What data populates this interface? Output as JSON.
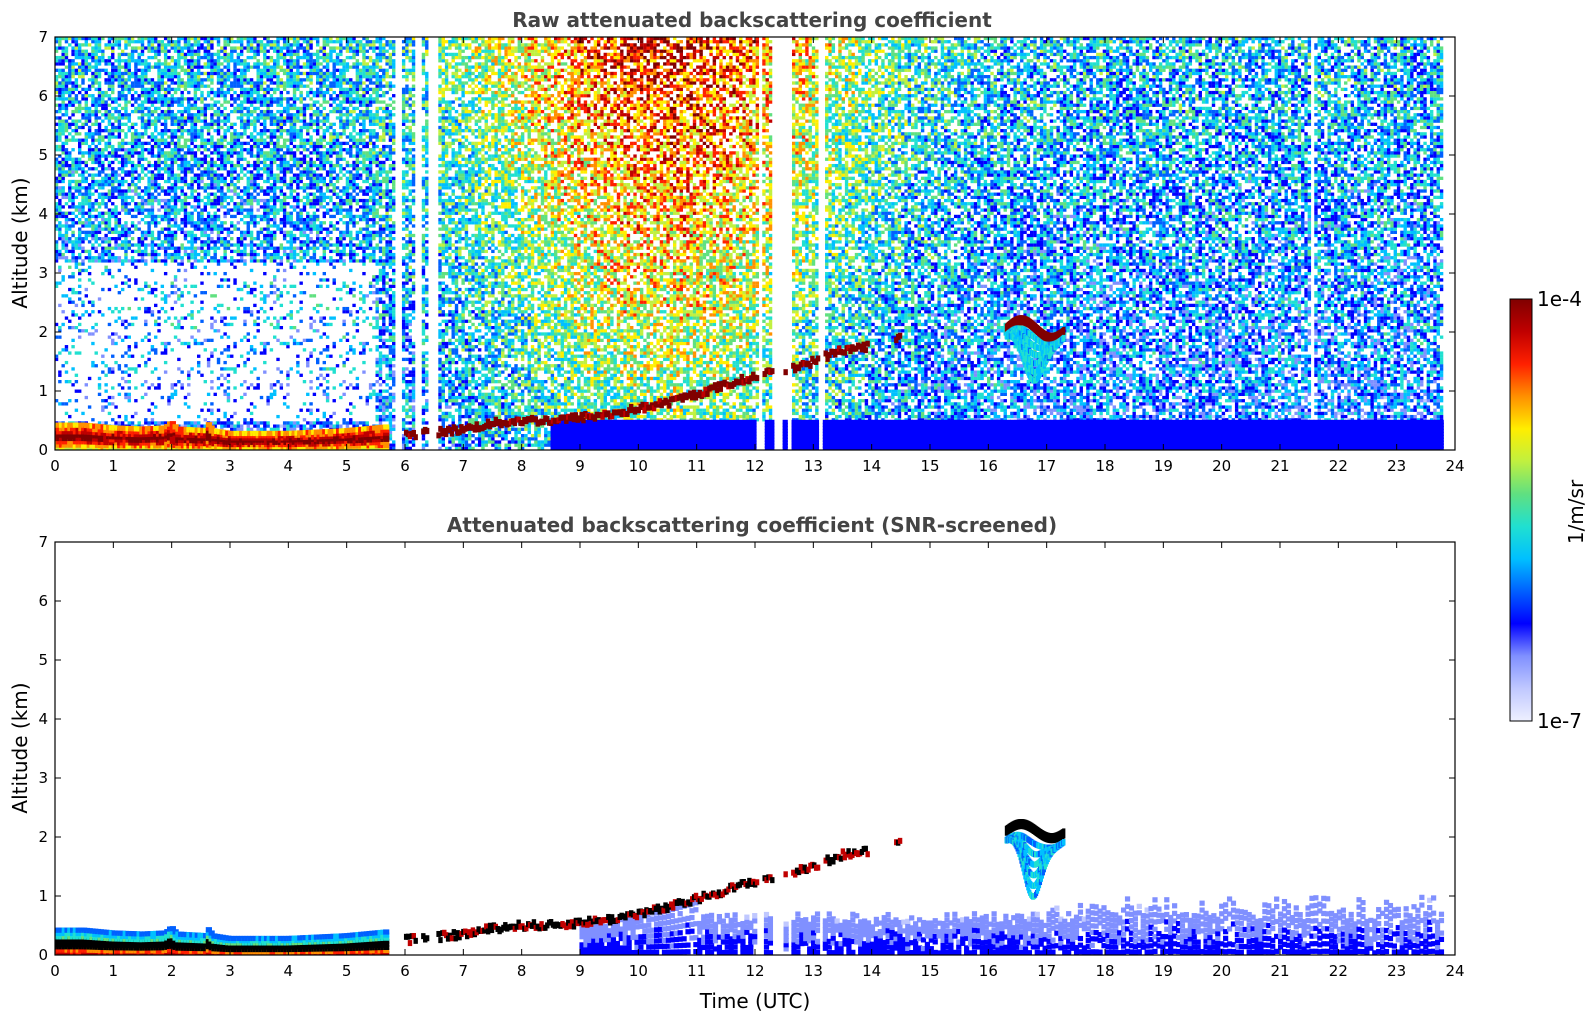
{
  "colors": {
    "colormap": [
      "#eef0ff",
      "#c0c8ff",
      "#8090ff",
      "#0000ff",
      "#0060ff",
      "#00c0ff",
      "#20e0d0",
      "#60e080",
      "#c0f040",
      "#ffee00",
      "#ff9000",
      "#ff2000",
      "#c00000",
      "#800000"
    ],
    "screened_core": "#000000"
  },
  "chart_data": [
    {
      "type": "heatmap",
      "title": "Raw attenuated backscattering coefficient",
      "xlabel": "",
      "ylabel": "Altitude (km)",
      "xlim": [
        0,
        24
      ],
      "ylim": [
        0,
        7
      ],
      "xticks": [
        "0",
        "1",
        "2",
        "3",
        "4",
        "5",
        "6",
        "7",
        "8",
        "9",
        "10",
        "11",
        "12",
        "13",
        "14",
        "15",
        "16",
        "17",
        "18",
        "19",
        "20",
        "21",
        "22",
        "23",
        "24"
      ],
      "yticks": [
        "0",
        "1",
        "2",
        "3",
        "4",
        "5",
        "6",
        "7"
      ],
      "data_end_time": 23.8,
      "gaps_time": [
        [
          5.85,
          5.95
        ],
        [
          6.2,
          6.3
        ],
        [
          6.4,
          6.55
        ],
        [
          12.05,
          12.15
        ],
        [
          12.3,
          12.5
        ],
        [
          12.55,
          12.65
        ],
        [
          13.1,
          13.2
        ],
        [
          20.55,
          20.58
        ],
        [
          21.55,
          21.58
        ]
      ],
      "aerosol_layer_top_km": {
        "time": [
          0,
          0.5,
          1,
          1.5,
          1.9,
          2.0,
          2.1,
          2.6,
          2.65,
          2.7,
          3,
          4,
          5,
          5.5,
          6,
          6.5,
          7,
          7.5,
          8,
          8.5,
          9,
          9.5,
          10,
          10.5,
          11,
          11.5,
          12,
          12.5,
          13,
          13.5,
          14
        ],
        "height": [
          0.45,
          0.45,
          0.4,
          0.38,
          0.4,
          0.5,
          0.38,
          0.35,
          0.5,
          0.35,
          0.3,
          0.3,
          0.35,
          0.4,
          0.45,
          0.5,
          0.6,
          0.7,
          0.65,
          0.6,
          0.6,
          0.7,
          0.8,
          0.9,
          1.0,
          1.15,
          1.25,
          1.35,
          1.5,
          1.65,
          1.75
        ]
      },
      "cloud_layer_km": {
        "time": [
          6.0,
          7.0,
          7.5,
          8.0,
          8.5,
          9.0,
          9.5,
          10.0,
          10.5,
          11.0,
          11.5,
          12.0,
          12.5,
          13.0,
          13.5,
          13.9,
          14.5
        ],
        "height": [
          0.25,
          0.35,
          0.45,
          0.5,
          0.5,
          0.55,
          0.6,
          0.7,
          0.8,
          0.95,
          1.1,
          1.25,
          1.35,
          1.5,
          1.7,
          1.75,
          1.9
        ]
      },
      "surface_layer_time": [
        0,
        5.7
      ]
    },
    {
      "type": "heatmap",
      "title": "Attenuated backscattering coefficient (SNR-screened)",
      "xlabel": "Time (UTC)",
      "ylabel": "Altitude (km)",
      "xlim": [
        0,
        24
      ],
      "ylim": [
        0,
        7
      ],
      "xticks": [
        "0",
        "1",
        "2",
        "3",
        "4",
        "5",
        "6",
        "7",
        "8",
        "9",
        "10",
        "11",
        "12",
        "13",
        "14",
        "15",
        "16",
        "17",
        "18",
        "19",
        "20",
        "21",
        "22",
        "23",
        "24"
      ],
      "yticks": [
        "0",
        "1",
        "2",
        "3",
        "4",
        "5",
        "6",
        "7"
      ],
      "data_end_time": 23.8,
      "screened_cloud_top_km": 2.3,
      "elevated_cloud_time": [
        16.3,
        17.3
      ]
    }
  ],
  "colorbar": {
    "label": "1/m/sr",
    "max_label": "1e-4",
    "min_label": "1e-7",
    "scale": "log",
    "range": [
      1e-07,
      0.0001
    ]
  }
}
